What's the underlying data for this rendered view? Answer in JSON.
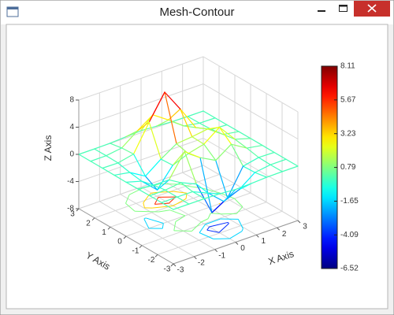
{
  "chart_data": {
    "type": "mesh-contour",
    "title": "Mesh-Contour",
    "x_label": "X Axis",
    "y_label": "Y Axis",
    "z_label": "Z Axis",
    "x": [
      -3,
      -2.25,
      -1.5,
      -0.75,
      0,
      0.75,
      1.5,
      2.25,
      3
    ],
    "y": [
      -3,
      -2.25,
      -1.5,
      -0.75,
      0,
      0.75,
      1.5,
      2.25,
      3
    ],
    "z": [
      [
        0,
        0,
        0,
        -0.07,
        -0.24,
        -0.17,
        -0.03,
        0,
        0
      ],
      [
        0,
        0.02,
        0.01,
        -0.99,
        -3.02,
        -2.05,
        -0.35,
        -0.01,
        0
      ],
      [
        0,
        0.03,
        0.33,
        -0.68,
        -5.68,
        -4.32,
        -0.44,
        0.05,
        0
      ],
      [
        -0.02,
        -0.26,
        -0.28,
        3.09,
        1.4,
        0.2,
        1.78,
        0.41,
        0.02
      ],
      [
        -0.04,
        -0.69,
        -2.77,
        0.06,
        0.98,
        1.57,
        3.27,
        0.7,
        0.03
      ],
      [
        -0.02,
        -0.42,
        -1.76,
        -0.05,
        1.42,
        1.65,
        1.99,
        0.4,
        0.02
      ],
      [
        0,
        -0.03,
        0.48,
        4.37,
        8.0,
        4.72,
        1.19,
        0.12,
        0
      ],
      [
        0,
        0.02,
        0.36,
        2.07,
        3.65,
        2.09,
        0.41,
        0.03,
        0
      ],
      [
        0,
        0,
        0.03,
        0.17,
        0.3,
        0.17,
        0.03,
        0,
        0
      ]
    ],
    "xlim": [
      -3,
      3
    ],
    "ylim": [
      -3,
      3
    ],
    "zlim": [
      -8,
      8
    ],
    "xticks": [
      -3,
      -2,
      -1,
      0,
      1,
      2,
      3
    ],
    "yticks": [
      -3,
      -2,
      -1,
      0,
      1,
      2,
      3
    ],
    "zticks": [
      -8,
      -4,
      0,
      4,
      8
    ],
    "colorbar_ticks": [
      8.11,
      5.67,
      3.23,
      0.79,
      -1.65,
      -4.09,
      -6.52
    ],
    "colormap": "jet",
    "grid": true
  }
}
